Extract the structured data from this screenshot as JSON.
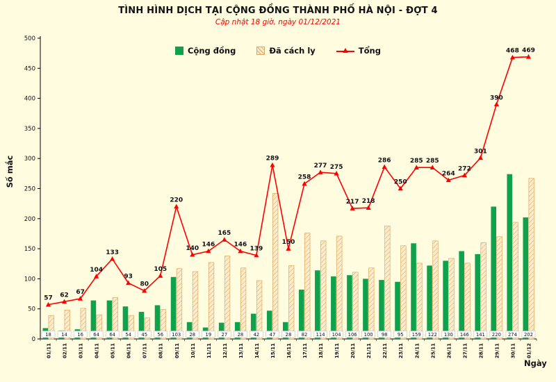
{
  "colors": {
    "background": "#fffce0",
    "community": "#0fa14b",
    "quarantine_fill": "#fbeccd",
    "quarantine_hatch": "#dfa960",
    "total_line": "#ff0000"
  },
  "chart_data": {
    "type": "bar+line",
    "title": "TÌNH HÌNH DỊCH TẠI CỘNG ĐỒNG THÀNH PHỐ HÀ NỘI - ĐỢT 4",
    "subtitle": "Cập nhật 18 giờ, ngày 01/12/2021",
    "categories": [
      "01/11",
      "02/11",
      "03/11",
      "04/11",
      "05/11",
      "06/11",
      "07/11",
      "08/11",
      "09/11",
      "10/11",
      "11/11",
      "12/11",
      "13/11",
      "14/11",
      "15/11",
      "16/11",
      "17/11",
      "18/11",
      "19/11",
      "20/11",
      "21/11",
      "22/11",
      "23/11",
      "24/11",
      "25/11",
      "26/11",
      "27/11",
      "28/11",
      "29/11",
      "30/11",
      "01/12"
    ],
    "series": [
      {
        "name": "Cộng đồng",
        "type": "bar",
        "values": [
          18,
          14,
          16,
          64,
          64,
          54,
          45,
          56,
          103,
          28,
          19,
          27,
          28,
          42,
          47,
          28,
          82,
          114,
          104,
          106,
          100,
          98,
          95,
          159,
          122,
          130,
          146,
          141,
          220,
          274,
          202
        ]
      },
      {
        "name": "Đã cách ly",
        "type": "bar",
        "values": [
          39,
          48,
          51,
          40,
          69,
          39,
          35,
          49,
          117,
          112,
          127,
          138,
          118,
          97,
          242,
          122,
          176,
          163,
          171,
          111,
          118,
          188,
          155,
          126,
          163,
          134,
          126,
          160,
          170,
          194,
          267
        ]
      },
      {
        "name": "Tổng",
        "type": "line",
        "values": [
          57,
          62,
          67,
          104,
          133,
          93,
          80,
          105,
          220,
          140,
          146,
          165,
          146,
          139,
          289,
          150,
          258,
          277,
          275,
          217,
          218,
          286,
          250,
          285,
          285,
          264,
          272,
          301,
          390,
          468,
          469
        ]
      }
    ],
    "xlabel": "Ngày",
    "ylabel": "Số mắc",
    "ylim": [
      0,
      500
    ],
    "ytick_step": 50,
    "grid": false,
    "legend_position": "top",
    "bar_value_labels": "community series values shown in white boxes at bar base",
    "line_value_labels": "total values shown in red above markers"
  }
}
